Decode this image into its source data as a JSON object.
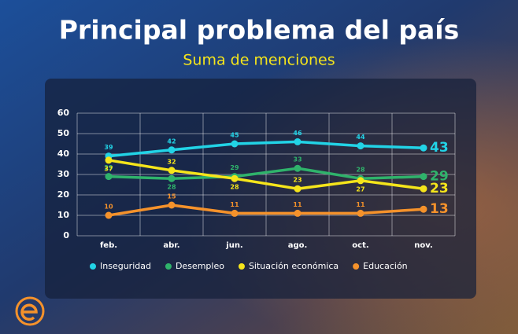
{
  "chart_data": {
    "type": "line",
    "title": "Principal problema del país",
    "subtitle": "Suma de menciones",
    "categories": [
      "feb.",
      "abr.",
      "jun.",
      "ago.",
      "oct.",
      "nov."
    ],
    "series": [
      {
        "name": "Inseguridad",
        "color": "#22d3e6",
        "values": [
          39,
          42,
          45,
          46,
          44,
          43
        ]
      },
      {
        "name": "Desempleo",
        "color": "#2fb36b",
        "values": [
          29,
          28,
          29,
          33,
          28,
          29
        ]
      },
      {
        "name": "Situación económica",
        "color": "#f5e51b",
        "values": [
          37,
          32,
          28,
          23,
          27,
          23
        ]
      },
      {
        "name": "Educación",
        "color": "#f5922b",
        "values": [
          10,
          15,
          11,
          11,
          11,
          13
        ]
      }
    ],
    "ylim": [
      0,
      60
    ],
    "yticks": [
      0,
      10,
      20,
      30,
      40,
      50,
      60
    ],
    "grid": true,
    "legend": "bottom"
  }
}
